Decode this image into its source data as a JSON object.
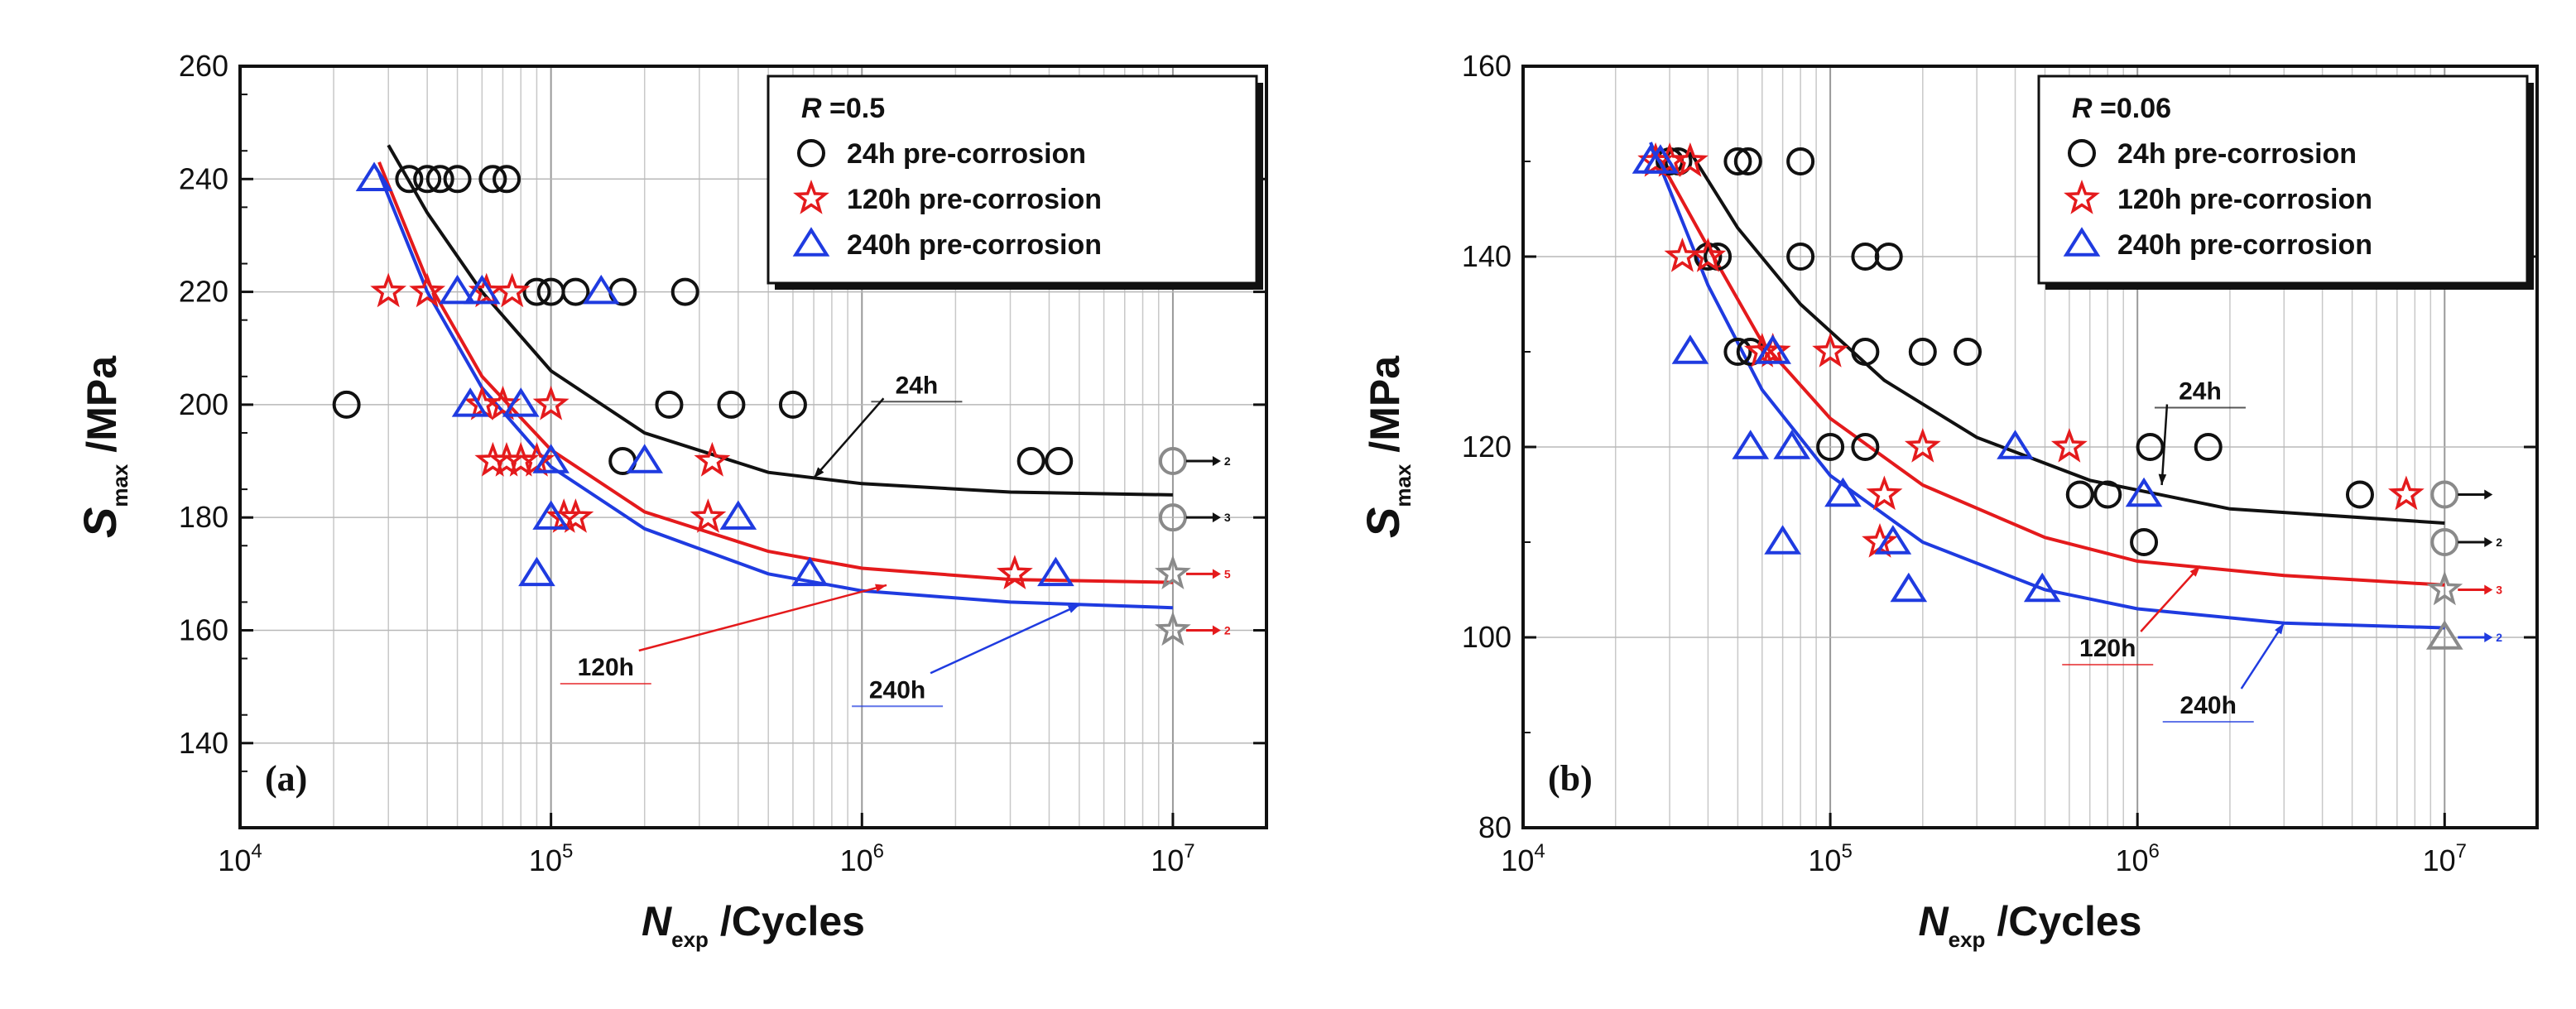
{
  "colors": {
    "c24": "#111111",
    "c120": "#e41a1c",
    "c240": "#1f3be0",
    "runout": "#8a8a8a"
  },
  "chart_data": [
    {
      "type": "scatter",
      "panel_label": "(a)",
      "r_label": {
        "prefix": "R",
        "value": "=0.5"
      },
      "xlabel": {
        "main": "N",
        "sub": "exp",
        "rest": "/Cycles"
      },
      "ylabel": {
        "main": "S",
        "sub": "max",
        "rest": "/MPa"
      },
      "xscale": "log",
      "xlim": [
        10000,
        20000000
      ],
      "ylim": [
        125,
        260
      ],
      "xticks": [
        {
          "v": 10000,
          "base": "10",
          "exp": "4"
        },
        {
          "v": 100000,
          "base": "10",
          "exp": "5"
        },
        {
          "v": 1000000,
          "base": "10",
          "exp": "6"
        },
        {
          "v": 10000000,
          "base": "10",
          "exp": "7"
        }
      ],
      "yticks": [
        140,
        160,
        180,
        200,
        220,
        240,
        260
      ],
      "legend_position": "top-right",
      "series": [
        {
          "name": "24h pre-corrosion",
          "color_key": "c24",
          "marker": "circle",
          "curve_label": "24h",
          "points": [
            [
              22000,
              200
            ],
            [
              35000,
              240
            ],
            [
              40000,
              240
            ],
            [
              44000,
              240
            ],
            [
              50000,
              240
            ],
            [
              65000,
              240
            ],
            [
              72000,
              240
            ],
            [
              90000,
              220
            ],
            [
              100000,
              220
            ],
            [
              120000,
              220
            ],
            [
              170000,
              220
            ],
            [
              270000,
              220
            ],
            [
              170000,
              190
            ],
            [
              240000,
              200
            ],
            [
              380000,
              200
            ],
            [
              600000,
              200
            ],
            [
              3500000,
              190
            ],
            [
              4300000,
              190
            ]
          ],
          "runouts": [
            [
              10000000,
              190,
              "2"
            ],
            [
              10000000,
              180,
              "3"
            ]
          ],
          "curve": [
            [
              30000,
              246
            ],
            [
              40000,
              234
            ],
            [
              60000,
              220
            ],
            [
              100000,
              206
            ],
            [
              200000,
              195
            ],
            [
              500000,
              188
            ],
            [
              1000000,
              186
            ],
            [
              3000000,
              184.5
            ],
            [
              10000000,
              184
            ]
          ],
          "label_at": [
            1500000,
            202
          ],
          "arrow_to": [
            700000,
            187
          ]
        },
        {
          "name": "120h pre-corrosion",
          "color_key": "c120",
          "marker": "star",
          "curve_label": "120h",
          "points": [
            [
              30000,
              220
            ],
            [
              40000,
              220
            ],
            [
              62000,
              220
            ],
            [
              75000,
              220
            ],
            [
              80000,
              190
            ],
            [
              60000,
              200
            ],
            [
              70000,
              200
            ],
            [
              65000,
              190
            ],
            [
              90000,
              190
            ],
            [
              100000,
              200
            ],
            [
              72000,
              190
            ],
            [
              110000,
              180
            ],
            [
              120000,
              180
            ],
            [
              330000,
              190
            ],
            [
              320000,
              180
            ],
            [
              3100000,
              170
            ]
          ],
          "runouts": [
            [
              10000000,
              170,
              "5"
            ],
            [
              10000000,
              160,
              "2"
            ]
          ],
          "curve": [
            [
              28000,
              243
            ],
            [
              40000,
              222
            ],
            [
              60000,
              205
            ],
            [
              100000,
              192
            ],
            [
              200000,
              181
            ],
            [
              500000,
              174
            ],
            [
              1000000,
              171
            ],
            [
              3000000,
              169
            ],
            [
              10000000,
              168.5
            ]
          ],
          "label_at": [
            150000,
            152
          ],
          "arrow_to": [
            1200000,
            168
          ]
        },
        {
          "name": "240h pre-corrosion",
          "color_key": "c240",
          "marker": "triangle",
          "curve_label": "240h",
          "points": [
            [
              27000,
              240
            ],
            [
              50000,
              220
            ],
            [
              60000,
              220
            ],
            [
              145000,
              220
            ],
            [
              55000,
              200
            ],
            [
              80000,
              200
            ],
            [
              100000,
              190
            ],
            [
              200000,
              190
            ],
            [
              100000,
              180
            ],
            [
              400000,
              180
            ],
            [
              90000,
              170
            ],
            [
              680000,
              170
            ],
            [
              4200000,
              170
            ]
          ],
          "runouts": [],
          "curve": [
            [
              28000,
              241
            ],
            [
              40000,
              220
            ],
            [
              60000,
              203
            ],
            [
              100000,
              189
            ],
            [
              200000,
              178
            ],
            [
              500000,
              170
            ],
            [
              1000000,
              167
            ],
            [
              3000000,
              165
            ],
            [
              10000000,
              164
            ]
          ],
          "label_at": [
            1300000,
            148
          ],
          "arrow_to": [
            5000000,
            164.5
          ]
        }
      ]
    },
    {
      "type": "scatter",
      "panel_label": "(b)",
      "r_label": {
        "prefix": "R",
        "value": "=0.06"
      },
      "xlabel": {
        "main": "N",
        "sub": "exp",
        "rest": "/Cycles"
      },
      "ylabel": {
        "main": "S",
        "sub": "max",
        "rest": "/MPa"
      },
      "xscale": "log",
      "xlim": [
        10000,
        20000000
      ],
      "ylim": [
        80,
        160
      ],
      "xticks": [
        {
          "v": 10000,
          "base": "10",
          "exp": "4"
        },
        {
          "v": 100000,
          "base": "10",
          "exp": "5"
        },
        {
          "v": 1000000,
          "base": "10",
          "exp": "6"
        },
        {
          "v": 10000000,
          "base": "10",
          "exp": "7"
        }
      ],
      "yticks": [
        80,
        100,
        120,
        140,
        160
      ],
      "legend_position": "top-right",
      "series": [
        {
          "name": "24h pre-corrosion",
          "color_key": "c24",
          "marker": "circle",
          "curve_label": "24h",
          "points": [
            [
              30000,
              150
            ],
            [
              32000,
              150
            ],
            [
              50000,
              150
            ],
            [
              54000,
              150
            ],
            [
              80000,
              150
            ],
            [
              40000,
              140
            ],
            [
              43000,
              140
            ],
            [
              80000,
              140
            ],
            [
              130000,
              140
            ],
            [
              155000,
              140
            ],
            [
              50000,
              130
            ],
            [
              55000,
              130
            ],
            [
              130000,
              130
            ],
            [
              200000,
              130
            ],
            [
              280000,
              130
            ],
            [
              100000,
              120
            ],
            [
              130000,
              120
            ],
            [
              1100000,
              120
            ],
            [
              1700000,
              120
            ],
            [
              650000,
              115
            ],
            [
              800000,
              115
            ],
            [
              1050000,
              110
            ],
            [
              5300000,
              115
            ]
          ],
          "runouts": [
            [
              10000000,
              115,
              ""
            ],
            [
              10000000,
              110,
              "2"
            ]
          ],
          "curve": [
            [
              35000,
              151
            ],
            [
              50000,
              143
            ],
            [
              80000,
              135
            ],
            [
              150000,
              127
            ],
            [
              300000,
              121
            ],
            [
              700000,
              116.5
            ],
            [
              2000000,
              113.5
            ],
            [
              10000000,
              112
            ]
          ],
          "label_at": [
            1600000,
            125
          ],
          "arrow_to": [
            1200000,
            116
          ]
        },
        {
          "name": "120h pre-corrosion",
          "color_key": "c120",
          "marker": "star",
          "curve_label": "120h",
          "points": [
            [
              27000,
              150
            ],
            [
              30000,
              150
            ],
            [
              35000,
              150
            ],
            [
              33000,
              140
            ],
            [
              40000,
              140
            ],
            [
              60000,
              130
            ],
            [
              65000,
              130
            ],
            [
              100000,
              130
            ],
            [
              150000,
              115
            ],
            [
              145000,
              110
            ],
            [
              200000,
              120
            ],
            [
              600000,
              120
            ],
            [
              7500000,
              115
            ]
          ],
          "runouts": [
            [
              10000000,
              105,
              "3"
            ]
          ],
          "curve": [
            [
              28000,
              150
            ],
            [
              40000,
              141
            ],
            [
              60000,
              131
            ],
            [
              100000,
              123
            ],
            [
              200000,
              116
            ],
            [
              500000,
              110.5
            ],
            [
              1000000,
              108
            ],
            [
              3000000,
              106.5
            ],
            [
              10000000,
              105.5
            ]
          ],
          "label_at": [
            800000,
            98
          ],
          "arrow_to": [
            1600000,
            107.5
          ]
        },
        {
          "name": "240h pre-corrosion",
          "color_key": "c240",
          "marker": "triangle",
          "curve_label": "240h",
          "points": [
            [
              26000,
              150
            ],
            [
              28000,
              150
            ],
            [
              35000,
              130
            ],
            [
              65000,
              130
            ],
            [
              55000,
              120
            ],
            [
              75000,
              120
            ],
            [
              110000,
              115
            ],
            [
              160000,
              110
            ],
            [
              70000,
              110
            ],
            [
              180000,
              105
            ],
            [
              400000,
              120
            ],
            [
              490000,
              105
            ],
            [
              1050000,
              115
            ]
          ],
          "runouts": [
            [
              10000000,
              100,
              "2"
            ]
          ],
          "curve": [
            [
              26000,
              152
            ],
            [
              40000,
              137
            ],
            [
              60000,
              126
            ],
            [
              100000,
              117
            ],
            [
              200000,
              110
            ],
            [
              500000,
              105
            ],
            [
              1000000,
              103
            ],
            [
              3000000,
              101.5
            ],
            [
              10000000,
              101
            ]
          ],
          "label_at": [
            1700000,
            92
          ],
          "arrow_to": [
            3000000,
            101.5
          ]
        }
      ]
    }
  ]
}
